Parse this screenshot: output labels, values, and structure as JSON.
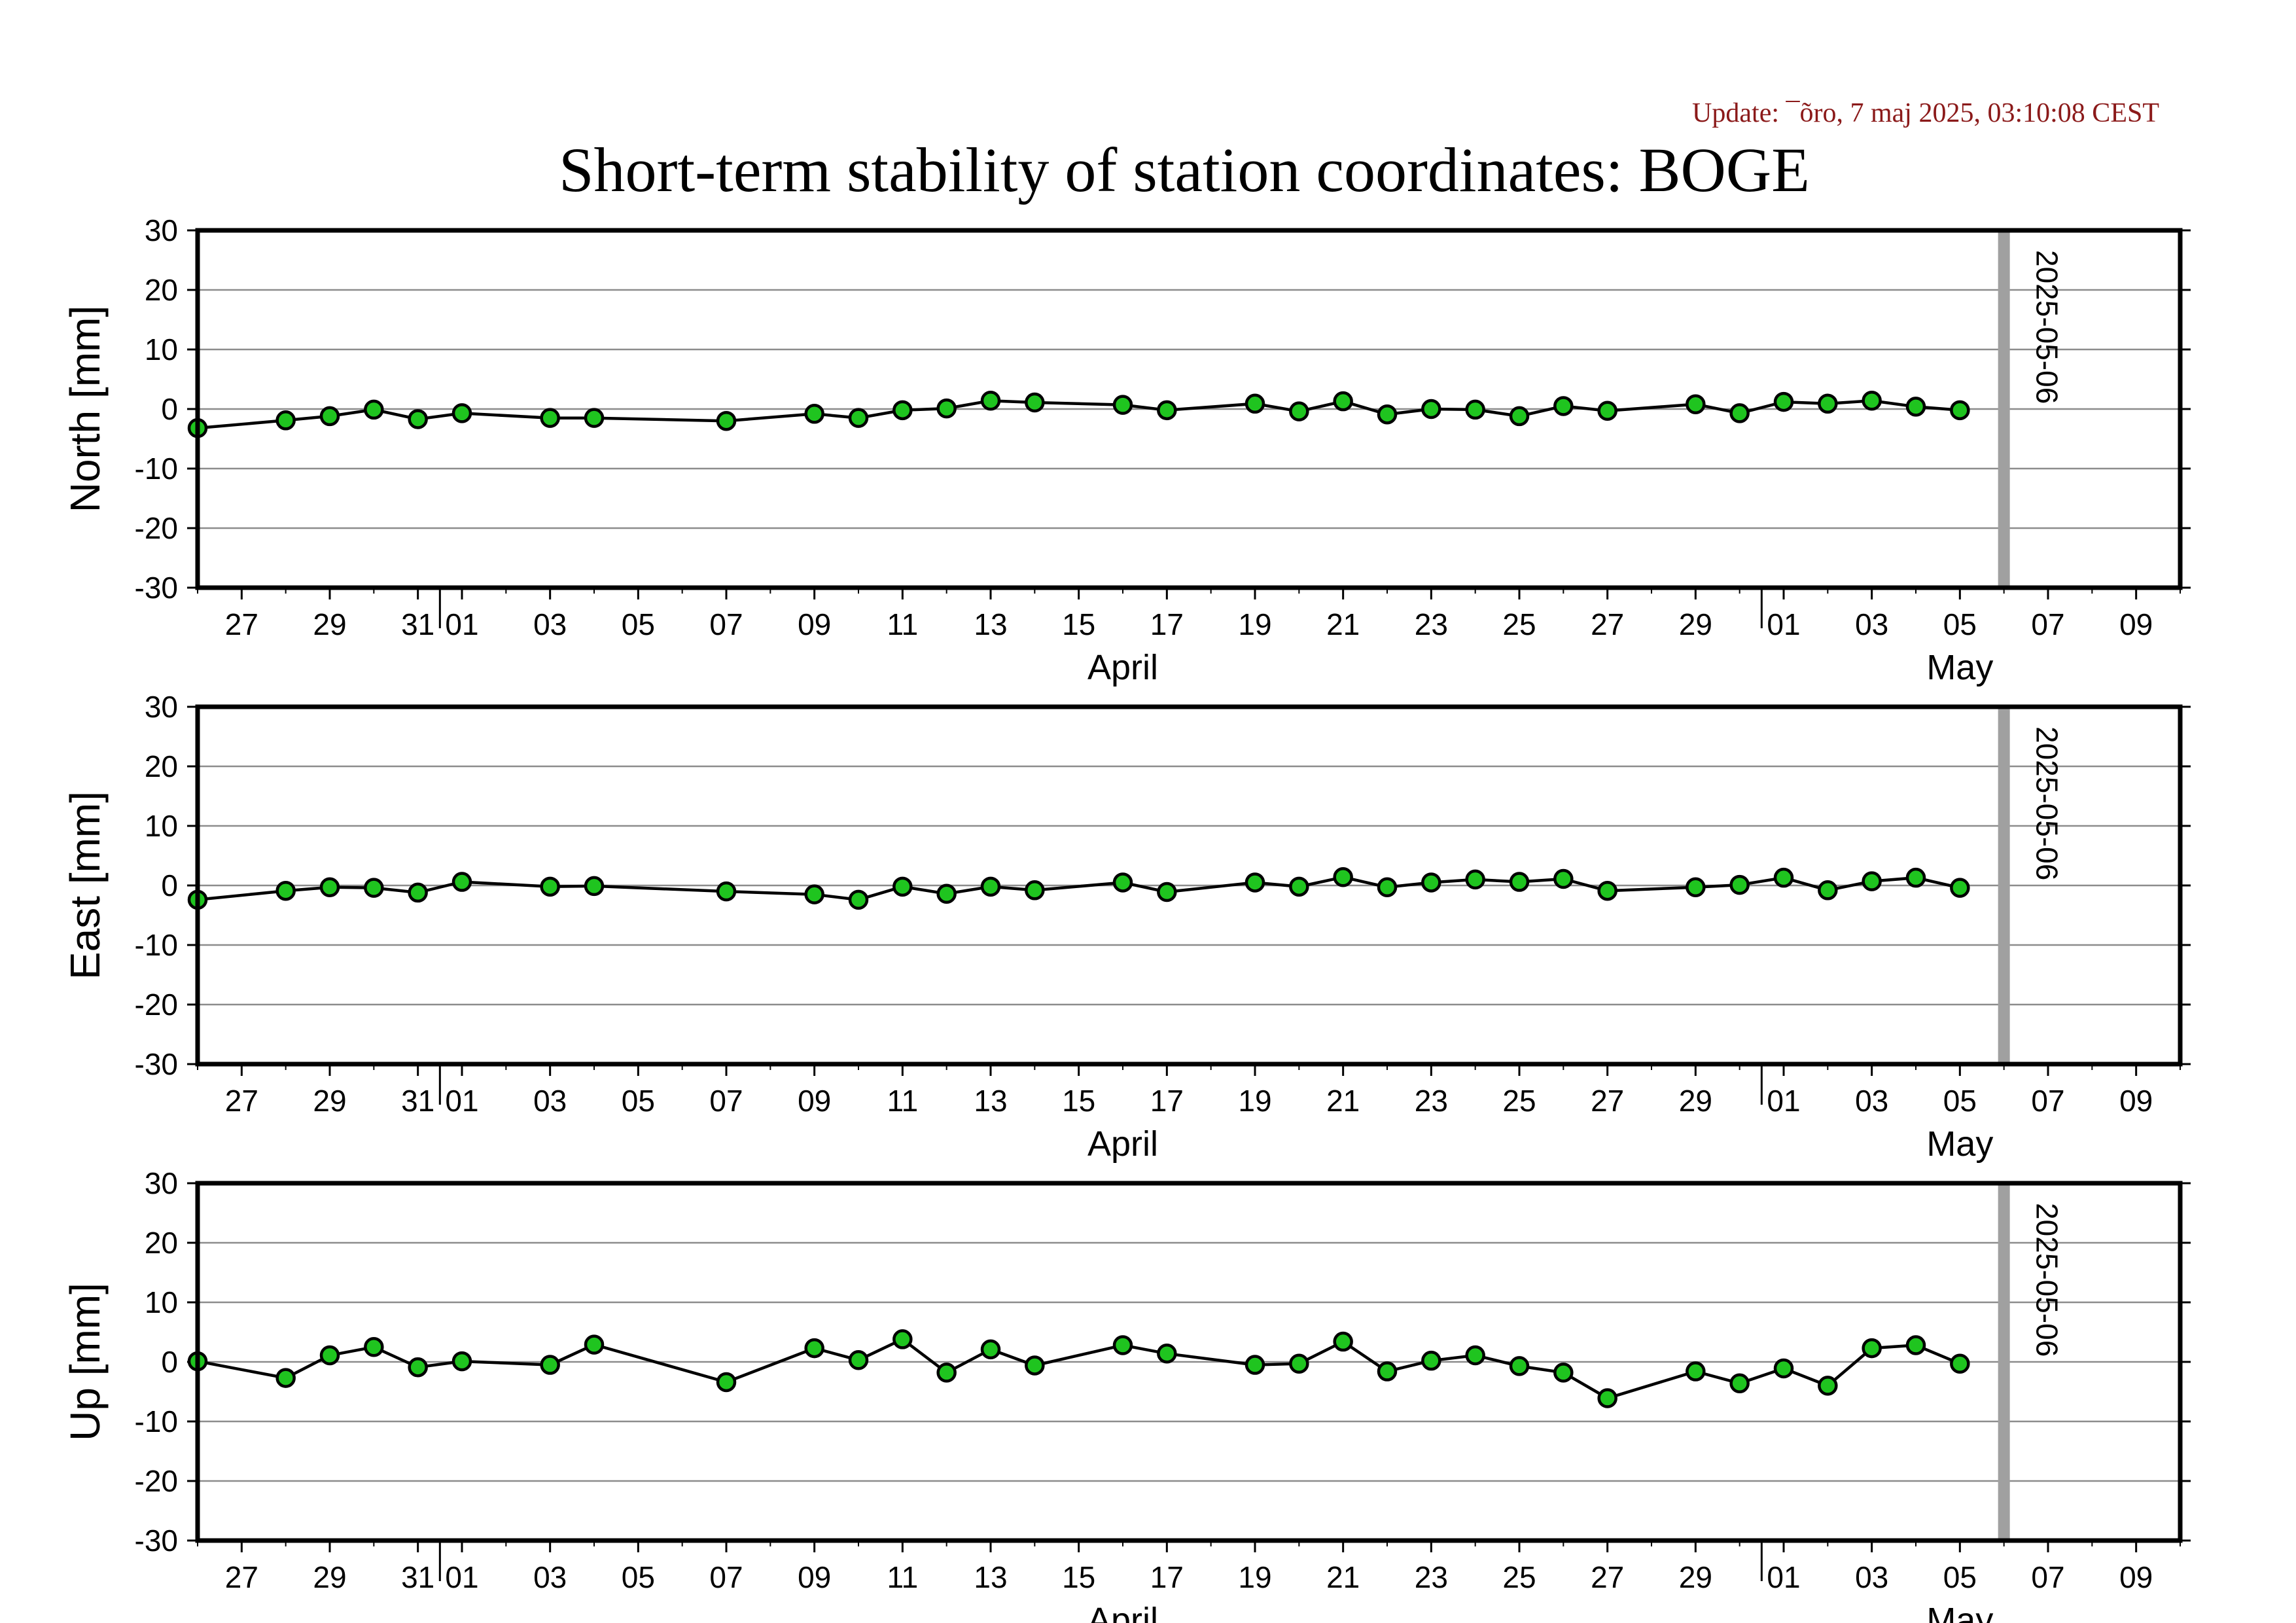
{
  "header": {
    "update": "Update: ¯õro, 7 maj 2025, 03:10:08 CEST",
    "title": "Short-term stability of station coordinates: BOGE"
  },
  "colors": {
    "point_fill": "#1fc41f",
    "point_stroke": "#000000",
    "line": "#000000",
    "grid": "#8c8c8c",
    "marker": "#a0a0a0",
    "update": "#8b1a1a"
  },
  "axis": {
    "x_start": "2025-03-26",
    "x_end": "2025-05-10",
    "x_tick_labels": [
      {
        "date": "2025-03-27",
        "label": "27"
      },
      {
        "date": "2025-03-29",
        "label": "29"
      },
      {
        "date": "2025-03-31",
        "label": "31"
      },
      {
        "date": "2025-04-01",
        "label": "01"
      },
      {
        "date": "2025-04-03",
        "label": "03"
      },
      {
        "date": "2025-04-05",
        "label": "05"
      },
      {
        "date": "2025-04-07",
        "label": "07"
      },
      {
        "date": "2025-04-09",
        "label": "09"
      },
      {
        "date": "2025-04-11",
        "label": "11"
      },
      {
        "date": "2025-04-13",
        "label": "13"
      },
      {
        "date": "2025-04-15",
        "label": "15"
      },
      {
        "date": "2025-04-17",
        "label": "17"
      },
      {
        "date": "2025-04-19",
        "label": "19"
      },
      {
        "date": "2025-04-21",
        "label": "21"
      },
      {
        "date": "2025-04-23",
        "label": "23"
      },
      {
        "date": "2025-04-25",
        "label": "25"
      },
      {
        "date": "2025-04-27",
        "label": "27"
      },
      {
        "date": "2025-04-29",
        "label": "29"
      },
      {
        "date": "2025-05-01",
        "label": "01"
      },
      {
        "date": "2025-05-03",
        "label": "03"
      },
      {
        "date": "2025-05-05",
        "label": "05"
      },
      {
        "date": "2025-05-07",
        "label": "07"
      },
      {
        "date": "2025-05-09",
        "label": "09"
      }
    ],
    "month_labels": [
      {
        "date": "2025-04-16",
        "label": "April"
      },
      {
        "date": "2025-05-05",
        "label": "May"
      }
    ],
    "y_ticks": [
      30,
      20,
      10,
      0,
      -10,
      -20,
      -30
    ],
    "y_tick_labels": [
      "30",
      "20",
      "10",
      "0",
      "-10",
      "-20",
      "-30"
    ],
    "ylim": [
      -30,
      30
    ],
    "grid": true
  },
  "chart_data": [
    {
      "type": "line",
      "ylabel": "North [mm]",
      "ylim": [
        -30,
        30
      ],
      "marker_date": "2025-05-06",
      "marker_label": "2025-05-06",
      "series": [
        {
          "x": [
            "2025-03-26",
            "2025-03-28",
            "2025-03-29",
            "2025-03-30",
            "2025-03-31",
            "2025-04-01",
            "2025-04-03",
            "2025-04-04",
            "2025-04-07",
            "2025-04-09",
            "2025-04-10",
            "2025-04-11",
            "2025-04-12",
            "2025-04-13",
            "2025-04-14",
            "2025-04-16",
            "2025-04-17",
            "2025-04-19",
            "2025-04-20",
            "2025-04-21",
            "2025-04-22",
            "2025-04-23",
            "2025-04-24",
            "2025-04-25",
            "2025-04-26",
            "2025-04-27",
            "2025-04-29",
            "2025-04-30",
            "2025-05-01",
            "2025-05-02",
            "2025-05-03",
            "2025-05-04",
            "2025-05-05"
          ],
          "y": [
            -3.2,
            -1.9,
            -1.2,
            -0.1,
            -1.7,
            -0.7,
            -1.5,
            -1.5,
            -2.0,
            -0.8,
            -1.5,
            -0.2,
            0.1,
            1.4,
            1.1,
            0.7,
            -0.2,
            0.9,
            -0.4,
            1.3,
            -0.9,
            0.0,
            -0.1,
            -1.2,
            0.5,
            -0.3,
            0.8,
            -0.7,
            1.2,
            0.9,
            1.4,
            0.4,
            -0.2
          ]
        }
      ]
    },
    {
      "type": "line",
      "ylabel": "East [mm]",
      "ylim": [
        -30,
        30
      ],
      "marker_date": "2025-05-06",
      "marker_label": "2025-05-06",
      "series": [
        {
          "x": [
            "2025-03-26",
            "2025-03-28",
            "2025-03-29",
            "2025-03-30",
            "2025-03-31",
            "2025-04-01",
            "2025-04-03",
            "2025-04-04",
            "2025-04-07",
            "2025-04-09",
            "2025-04-10",
            "2025-04-11",
            "2025-04-12",
            "2025-04-13",
            "2025-04-14",
            "2025-04-16",
            "2025-04-17",
            "2025-04-19",
            "2025-04-20",
            "2025-04-21",
            "2025-04-22",
            "2025-04-23",
            "2025-04-24",
            "2025-04-25",
            "2025-04-26",
            "2025-04-27",
            "2025-04-29",
            "2025-04-30",
            "2025-05-01",
            "2025-05-02",
            "2025-05-03",
            "2025-05-04",
            "2025-05-05"
          ],
          "y": [
            -2.4,
            -0.9,
            -0.3,
            -0.4,
            -1.2,
            0.6,
            -0.2,
            -0.1,
            -1.0,
            -1.5,
            -2.4,
            -0.2,
            -1.4,
            -0.2,
            -0.8,
            0.5,
            -1.1,
            0.5,
            -0.2,
            1.4,
            -0.3,
            0.5,
            1.0,
            0.6,
            1.1,
            -0.9,
            -0.3,
            0.1,
            1.3,
            -0.8,
            0.7,
            1.3,
            -0.4
          ]
        }
      ]
    },
    {
      "type": "line",
      "ylabel": "Up [mm]",
      "ylim": [
        -30,
        30
      ],
      "marker_date": "2025-05-06",
      "marker_label": "2025-05-06",
      "series": [
        {
          "x": [
            "2025-03-26",
            "2025-03-28",
            "2025-03-29",
            "2025-03-30",
            "2025-03-31",
            "2025-04-01",
            "2025-04-03",
            "2025-04-04",
            "2025-04-07",
            "2025-04-09",
            "2025-04-10",
            "2025-04-11",
            "2025-04-12",
            "2025-04-13",
            "2025-04-14",
            "2025-04-16",
            "2025-04-17",
            "2025-04-19",
            "2025-04-20",
            "2025-04-21",
            "2025-04-22",
            "2025-04-23",
            "2025-04-24",
            "2025-04-25",
            "2025-04-26",
            "2025-04-27",
            "2025-04-29",
            "2025-04-30",
            "2025-05-01",
            "2025-05-02",
            "2025-05-03",
            "2025-05-04",
            "2025-05-05"
          ],
          "y": [
            0.1,
            -2.7,
            1.1,
            2.5,
            -0.9,
            0.1,
            -0.5,
            2.9,
            -3.4,
            2.3,
            0.3,
            3.8,
            -1.8,
            2.1,
            -0.6,
            2.8,
            1.4,
            -0.5,
            -0.3,
            3.4,
            -1.6,
            0.2,
            1.1,
            -0.7,
            -1.8,
            -6.1,
            -1.6,
            -3.6,
            -1.1,
            -4.0,
            2.3,
            2.8,
            -0.3
          ]
        }
      ]
    }
  ]
}
